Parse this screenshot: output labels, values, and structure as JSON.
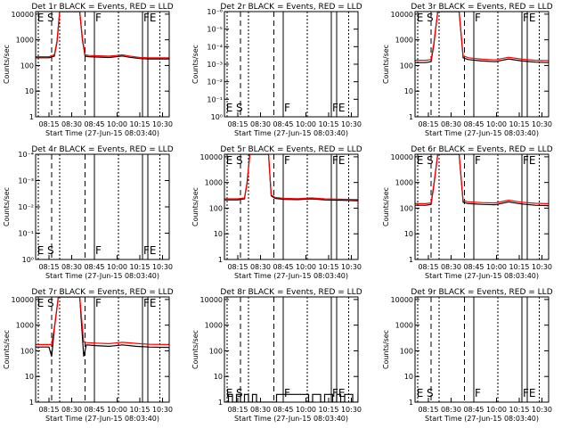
{
  "figure": {
    "xlabel": "Start Time (27-Jun-15 08:03:40)",
    "ylabel": "Counts/sec",
    "x_ticks": [
      "08:15",
      "08:30",
      "08:45",
      "10:00",
      "10:15",
      "10:30"
    ]
  },
  "chart_data": [
    {
      "type": "line",
      "title": "Det 1r BLACK = Events, RED = LLD",
      "ylabel": "Counts/sec",
      "y_ticks": [
        "1",
        "10",
        "100",
        "1000",
        "10000"
      ],
      "ylim_log10": [
        0,
        4.1
      ],
      "event_labels": [
        "E",
        "S",
        "F",
        "FE"
      ],
      "series": [
        {
          "color": "#000000",
          "x": [
            0,
            0.1,
            0.14,
            0.16,
            0.18,
            0.22,
            0.3,
            0.33,
            0.35,
            0.37,
            0.4,
            0.55,
            0.65,
            0.7,
            0.78,
            0.85,
            1.0
          ],
          "y": [
            200,
            200,
            230,
            800,
            15000,
            15000,
            15000,
            15000,
            1000,
            230,
            220,
            205,
            235,
            210,
            185,
            180,
            180
          ]
        },
        {
          "color": "#ff0000",
          "x": [
            0,
            0.1,
            0.14,
            0.16,
            0.18,
            0.22,
            0.3,
            0.33,
            0.35,
            0.37,
            0.4,
            0.55,
            0.65,
            0.7,
            0.78,
            0.85,
            1.0
          ],
          "y": [
            220,
            220,
            260,
            900,
            15000,
            15000,
            15000,
            15000,
            1200,
            260,
            245,
            230,
            260,
            235,
            205,
            200,
            200
          ]
        }
      ]
    },
    {
      "type": "line",
      "title": "Det 2r BLACK = Events, RED = LLD",
      "ylabel": "Counts/sec",
      "y_ticks": [
        "10⁰",
        "10⁻¹",
        "10⁻²",
        "10⁻³",
        "10⁻⁴",
        "10⁻⁵",
        "10⁻⁶"
      ],
      "ylim_log10": [
        0,
        6
      ],
      "event_labels": [
        "E",
        "S",
        "F",
        "FE"
      ],
      "series": []
    },
    {
      "type": "line",
      "title": "Det 3r BLACK = Events, RED = LLD",
      "ylabel": "Counts/sec",
      "y_ticks": [
        "1",
        "10",
        "100",
        "1000",
        "10000"
      ],
      "ylim_log10": [
        0,
        4.1
      ],
      "event_labels": [
        "E",
        "S",
        "F",
        "FE"
      ],
      "series": [
        {
          "color": "#000000",
          "x": [
            0,
            0.08,
            0.12,
            0.14,
            0.17,
            0.22,
            0.3,
            0.33,
            0.36,
            0.4,
            0.5,
            0.6,
            0.7,
            0.8,
            0.9,
            1.0
          ],
          "y": [
            130,
            130,
            140,
            600,
            15000,
            15000,
            15000,
            15000,
            200,
            170,
            150,
            140,
            180,
            150,
            135,
            130
          ]
        },
        {
          "color": "#ff0000",
          "x": [
            0,
            0.08,
            0.12,
            0.14,
            0.17,
            0.22,
            0.3,
            0.33,
            0.36,
            0.4,
            0.5,
            0.6,
            0.7,
            0.8,
            0.9,
            1.0
          ],
          "y": [
            160,
            160,
            170,
            700,
            15000,
            15000,
            15000,
            15000,
            240,
            200,
            175,
            165,
            210,
            175,
            160,
            155
          ]
        }
      ]
    },
    {
      "type": "line",
      "title": "Det 4r BLACK = Events, RED = LLD",
      "ylabel": "Counts/sec",
      "y_ticks": [
        "10⁰",
        "10⁻¹",
        "10⁻²",
        "10⁻³",
        "10⁻⁴"
      ],
      "ylim_log10": [
        0,
        4
      ],
      "event_labels": [
        "E",
        "S",
        "F",
        "FE"
      ],
      "series": []
    },
    {
      "type": "line",
      "title": "Det 5r BLACK = Events, RED = LLD",
      "ylabel": "Counts/sec",
      "y_ticks": [
        "1",
        "10",
        "100",
        "1000",
        "10000"
      ],
      "ylim_log10": [
        0,
        4.1
      ],
      "event_labels": [
        "E",
        "S",
        "F",
        "FE"
      ],
      "series": [
        {
          "color": "#000000",
          "x": [
            0,
            0.1,
            0.15,
            0.17,
            0.19,
            0.25,
            0.3,
            0.33,
            0.35,
            0.38,
            0.45,
            0.55,
            0.65,
            0.75,
            0.85,
            1.0
          ],
          "y": [
            210,
            210,
            230,
            1000,
            15000,
            15000,
            15000,
            15000,
            300,
            240,
            220,
            215,
            230,
            210,
            205,
            195
          ]
        },
        {
          "color": "#ff0000",
          "x": [
            0,
            0.1,
            0.15,
            0.17,
            0.19,
            0.25,
            0.3,
            0.33,
            0.35,
            0.38,
            0.45,
            0.55,
            0.65,
            0.75,
            0.85,
            1.0
          ],
          "y": [
            230,
            230,
            250,
            1100,
            15000,
            15000,
            15000,
            15000,
            330,
            260,
            240,
            235,
            250,
            230,
            225,
            215
          ]
        }
      ]
    },
    {
      "type": "line",
      "title": "Det 6r BLACK = Events, RED = LLD",
      "ylabel": "Counts/sec",
      "y_ticks": [
        "1",
        "10",
        "100",
        "1000",
        "10000"
      ],
      "ylim_log10": [
        0,
        4.1
      ],
      "event_labels": [
        "E",
        "S",
        "F",
        "FE"
      ],
      "series": [
        {
          "color": "#000000",
          "x": [
            0,
            0.08,
            0.12,
            0.14,
            0.17,
            0.22,
            0.3,
            0.33,
            0.36,
            0.4,
            0.5,
            0.6,
            0.7,
            0.8,
            0.9,
            1.0
          ],
          "y": [
            130,
            130,
            140,
            700,
            15000,
            15000,
            15000,
            15000,
            170,
            150,
            140,
            135,
            175,
            145,
            130,
            125
          ]
        },
        {
          "color": "#ff0000",
          "x": [
            0,
            0.08,
            0.12,
            0.14,
            0.17,
            0.22,
            0.3,
            0.33,
            0.36,
            0.4,
            0.5,
            0.6,
            0.7,
            0.8,
            0.9,
            1.0
          ],
          "y": [
            150,
            150,
            160,
            800,
            15000,
            15000,
            15000,
            15000,
            200,
            175,
            165,
            160,
            205,
            170,
            155,
            150
          ]
        }
      ]
    },
    {
      "type": "line",
      "title": "Det 7r BLACK = Events, RED = LLD",
      "ylabel": "Counts/sec",
      "y_ticks": [
        "1",
        "10",
        "100",
        "1000",
        "10000"
      ],
      "ylim_log10": [
        0,
        4.1
      ],
      "event_labels": [
        "E",
        "S",
        "F",
        "FE"
      ],
      "series": [
        {
          "color": "#000000",
          "x": [
            0,
            0.08,
            0.1,
            0.12,
            0.14,
            0.17,
            0.22,
            0.3,
            0.33,
            0.36,
            0.38,
            0.45,
            0.55,
            0.65,
            0.75,
            0.85,
            1.0
          ],
          "y": [
            140,
            140,
            140,
            60,
            700,
            15000,
            15000,
            15000,
            15000,
            60,
            170,
            160,
            150,
            170,
            150,
            140,
            135
          ]
        },
        {
          "color": "#ff0000",
          "x": [
            0,
            0.08,
            0.1,
            0.12,
            0.14,
            0.17,
            0.22,
            0.3,
            0.33,
            0.36,
            0.38,
            0.45,
            0.55,
            0.65,
            0.75,
            0.85,
            1.0
          ],
          "y": [
            175,
            175,
            175,
            175,
            800,
            15000,
            15000,
            15000,
            15000,
            220,
            210,
            200,
            190,
            215,
            195,
            180,
            175
          ]
        }
      ]
    },
    {
      "type": "line",
      "title": "Det 8r BLACK = Events, RED = LLD",
      "ylabel": "Counts/sec",
      "y_ticks": [
        "1",
        "10",
        "100",
        "1000",
        "10000"
      ],
      "ylim_log10": [
        0,
        4.1
      ],
      "event_labels": [
        "E",
        "S",
        "F",
        "FE"
      ],
      "series": [
        {
          "color": "#000000",
          "x": [
            0,
            0.03,
            0.06,
            0.09,
            0.12,
            0.15,
            0.18,
            0.21,
            0.24,
            0.27,
            0.3,
            0.33,
            0.36,
            0.39,
            0.42,
            0.45,
            0.48,
            0.51,
            0.54,
            0.57,
            0.6,
            0.63,
            0.66,
            0.69,
            0.72,
            0.75,
            0.78,
            0.81,
            0.84,
            0.87,
            0.9,
            0.93,
            0.96,
            1.0
          ],
          "y": [
            1,
            2,
            1,
            2,
            1,
            2,
            1,
            2,
            1,
            1,
            1,
            1,
            1,
            2,
            2,
            2,
            2,
            2,
            2,
            2,
            2,
            1,
            2,
            2,
            1,
            2,
            2,
            1,
            2,
            1,
            2,
            2,
            1,
            2
          ]
        }
      ]
    },
    {
      "type": "line",
      "title": "Det 9r BLACK = Events, RED = LLD",
      "ylabel": "Counts/sec",
      "y_ticks": [
        "1",
        "10",
        "100",
        "1000",
        "10000"
      ],
      "ylim_log10": [
        0,
        4.1
      ],
      "event_labels": [
        "E",
        "S",
        "F",
        "FE"
      ],
      "series": []
    }
  ]
}
